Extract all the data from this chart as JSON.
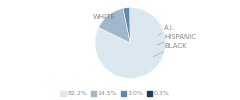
{
  "labels": [
    "WHITE",
    "HISPANIC",
    "BLACK",
    "A.I."
  ],
  "values": [
    82.2,
    14.5,
    3.0,
    0.3
  ],
  "colors": [
    "#dce8f0",
    "#9fb8cc",
    "#5b8aaa",
    "#1e3a54"
  ],
  "legend_labels": [
    "82.2%",
    "14.5%",
    "3.0%",
    "0.3%"
  ],
  "bg_color": "#ffffff",
  "label_fontsize": 5.0,
  "legend_fontsize": 4.5,
  "text_color": "#888888",
  "line_color": "#aaaaaa"
}
